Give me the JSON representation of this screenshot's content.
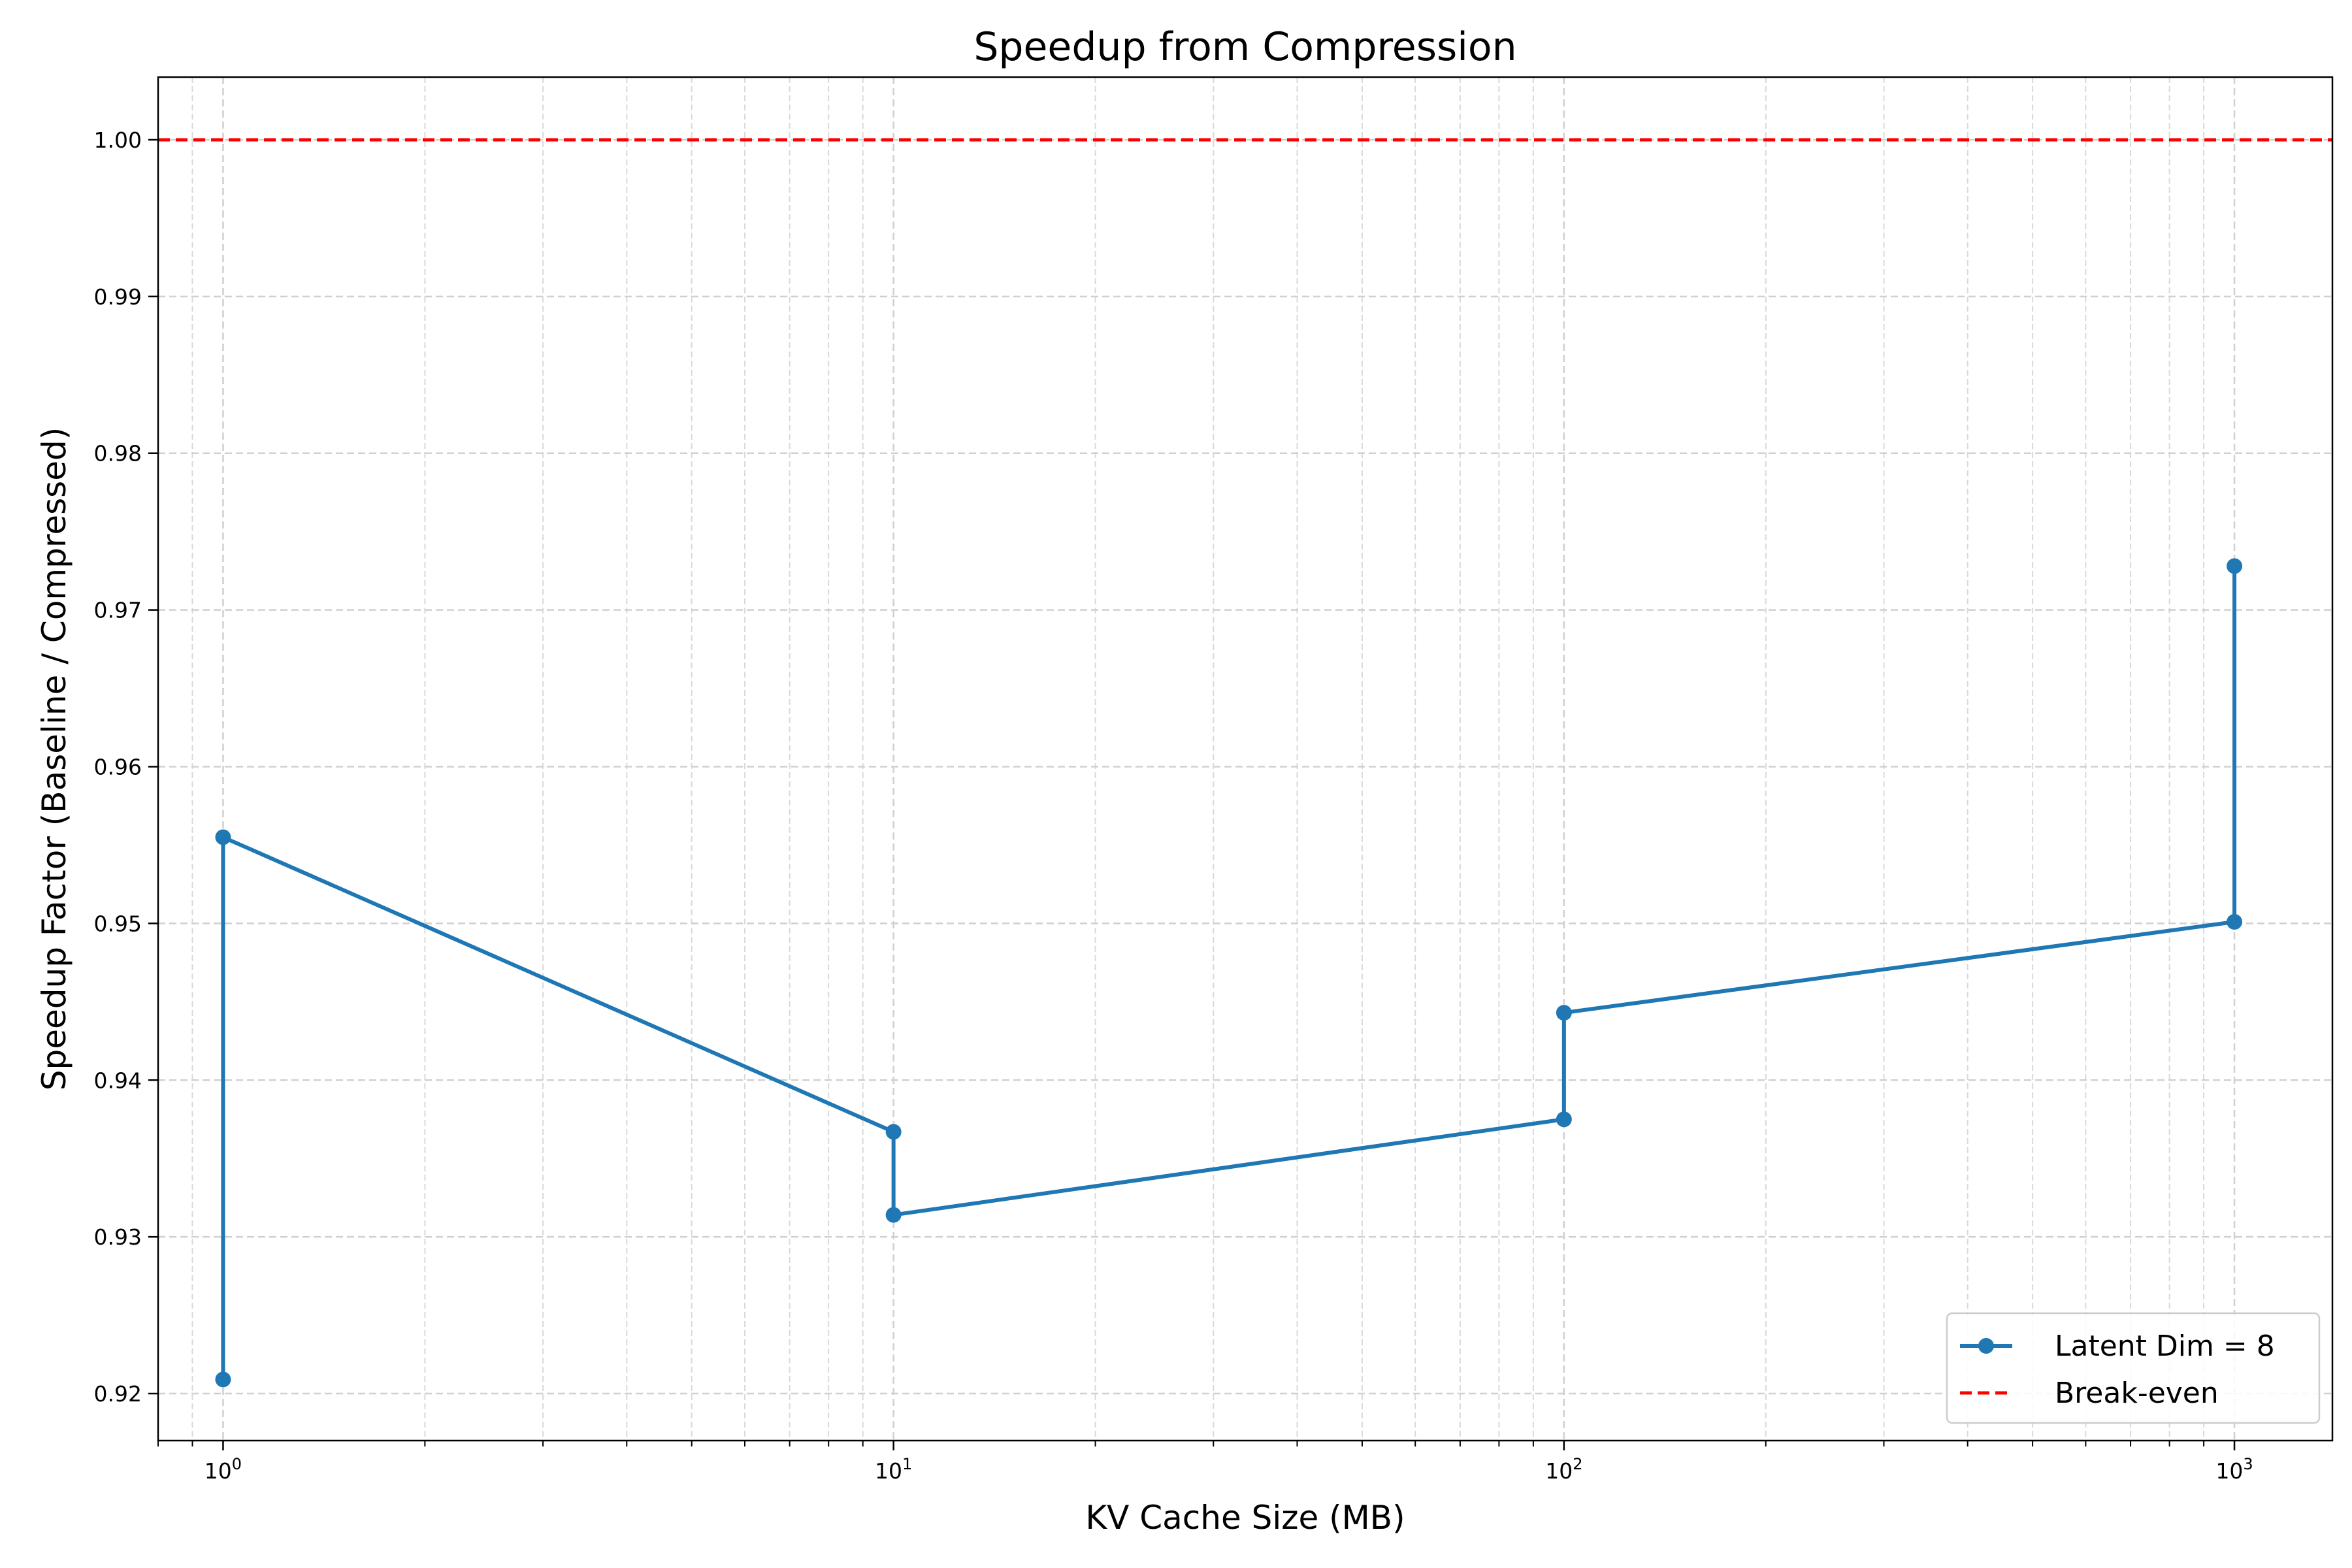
{
  "chart_data": {
    "type": "line",
    "title": "Speedup from Compression",
    "xlabel": "KV Cache Size (MB)",
    "ylabel": "Speedup Factor (Baseline / Compressed)",
    "xscale": "log",
    "xlim": [
      0.8,
      1400
    ],
    "ylim": [
      0.917,
      1.004
    ],
    "grid": true,
    "legend_position": "bottom-right",
    "x_ticks": [
      1,
      10,
      100,
      1000
    ],
    "x_tick_labels": [
      {
        "base": "10",
        "exp": "0"
      },
      {
        "base": "10",
        "exp": "1"
      },
      {
        "base": "10",
        "exp": "2"
      },
      {
        "base": "10",
        "exp": "3"
      }
    ],
    "y_ticks": [
      0.92,
      0.93,
      0.94,
      0.95,
      0.96,
      0.97,
      0.98,
      0.99,
      1.0
    ],
    "y_tick_labels": [
      "0.92",
      "0.93",
      "0.94",
      "0.95",
      "0.96",
      "0.97",
      "0.98",
      "0.99",
      "1.00"
    ],
    "series": [
      {
        "name": "Latent Dim = 8",
        "color": "#1f77b4",
        "style": "solid-with-markers",
        "points": [
          {
            "x": 1,
            "y": 0.9209
          },
          {
            "x": 1,
            "y": 0.9555
          },
          {
            "x": 10,
            "y": 0.9367
          },
          {
            "x": 10,
            "y": 0.9314
          },
          {
            "x": 100,
            "y": 0.9375
          },
          {
            "x": 100,
            "y": 0.9443
          },
          {
            "x": 1000,
            "y": 0.9501
          },
          {
            "x": 1000,
            "y": 0.9728
          }
        ]
      },
      {
        "name": "Break-even",
        "color": "#ff0000",
        "style": "dashed",
        "y": 1.0
      }
    ]
  }
}
